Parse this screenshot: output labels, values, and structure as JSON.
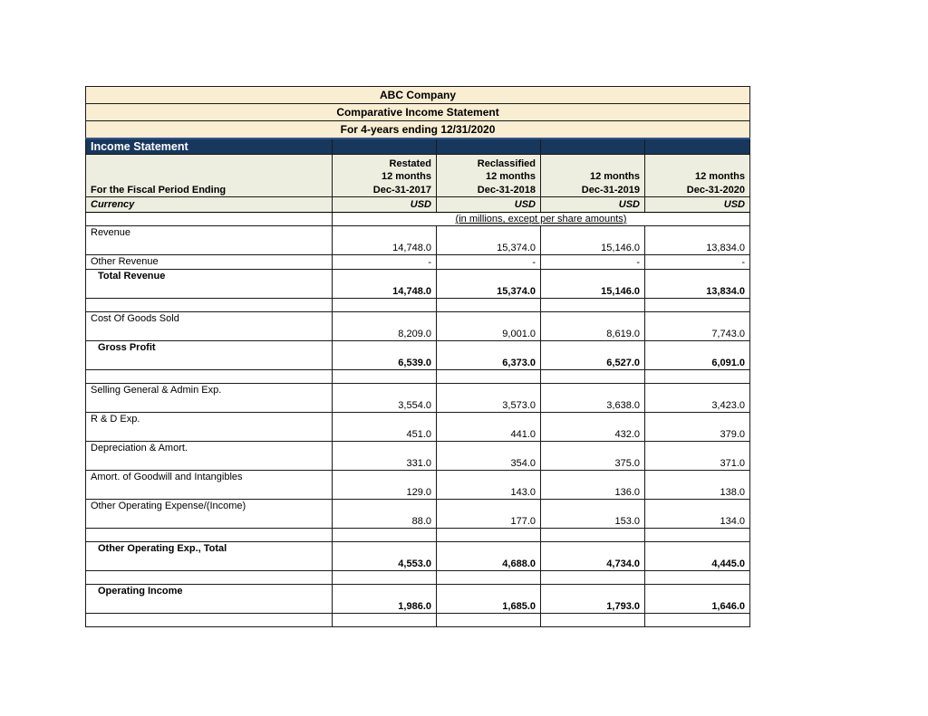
{
  "table": {
    "titles": [
      "ABC Company",
      "Comparative Income Statement",
      "For 4-years ending 12/31/2020"
    ],
    "section_header": "Income Statement",
    "fiscal_label": "For the Fiscal Period Ending",
    "columns": [
      {
        "lines": [
          "Restated",
          "12 months",
          "Dec-31-2017"
        ]
      },
      {
        "lines": [
          "Reclassified",
          "12 months",
          "Dec-31-2018"
        ]
      },
      {
        "lines": [
          "12 months",
          "Dec-31-2019"
        ]
      },
      {
        "lines": [
          "12 months",
          "Dec-31-2020"
        ]
      }
    ],
    "currency_label": "Currency",
    "currency_values": [
      "USD",
      "USD",
      "USD",
      "USD"
    ],
    "units_note": "(in millions, except per share amounts)",
    "rows": [
      {
        "label": "Revenue",
        "values": [
          "14,748.0",
          "15,374.0",
          "15,146.0",
          "13,834.0"
        ],
        "style": "normal"
      },
      {
        "label": "Other Revenue",
        "values": [
          "-",
          "-",
          "-",
          "-"
        ],
        "style": "single"
      },
      {
        "label": "Total Revenue",
        "values": [
          "14,748.0",
          "15,374.0",
          "15,146.0",
          "13,834.0"
        ],
        "style": "bold"
      },
      {
        "style": "spacer"
      },
      {
        "label": "Cost Of Goods Sold",
        "values": [
          "8,209.0",
          "9,001.0",
          "8,619.0",
          "7,743.0"
        ],
        "style": "normal"
      },
      {
        "label": "Gross Profit",
        "values": [
          "6,539.0",
          "6,373.0",
          "6,527.0",
          "6,091.0"
        ],
        "style": "bold"
      },
      {
        "style": "spacer"
      },
      {
        "label": "Selling General & Admin Exp.",
        "values": [
          "3,554.0",
          "3,573.0",
          "3,638.0",
          "3,423.0"
        ],
        "style": "normal"
      },
      {
        "label": "R & D Exp.",
        "values": [
          "451.0",
          "441.0",
          "432.0",
          "379.0"
        ],
        "style": "normal"
      },
      {
        "label": "Depreciation & Amort.",
        "values": [
          "331.0",
          "354.0",
          "375.0",
          "371.0"
        ],
        "style": "normal"
      },
      {
        "label": "Amort. of Goodwill and Intangibles",
        "values": [
          "129.0",
          "143.0",
          "136.0",
          "138.0"
        ],
        "style": "normal"
      },
      {
        "label": "Other Operating Expense/(Income)",
        "values": [
          "88.0",
          "177.0",
          "153.0",
          "134.0"
        ],
        "style": "normal"
      },
      {
        "style": "spacer"
      },
      {
        "label": "Other Operating Exp., Total",
        "values": [
          "4,553.0",
          "4,688.0",
          "4,734.0",
          "4,445.0"
        ],
        "style": "bold"
      },
      {
        "style": "spacer"
      },
      {
        "label": "Operating Income",
        "values": [
          "1,986.0",
          "1,685.0",
          "1,793.0",
          "1,646.0"
        ],
        "style": "bold"
      },
      {
        "style": "spacer"
      }
    ],
    "colors": {
      "title_background": "#F9EDD2",
      "section_background": "#17375D",
      "section_text": "#FFFFFF",
      "subheader_background": "#EDEEDF",
      "grid": "#1A1A1A",
      "text": "#000000"
    }
  }
}
